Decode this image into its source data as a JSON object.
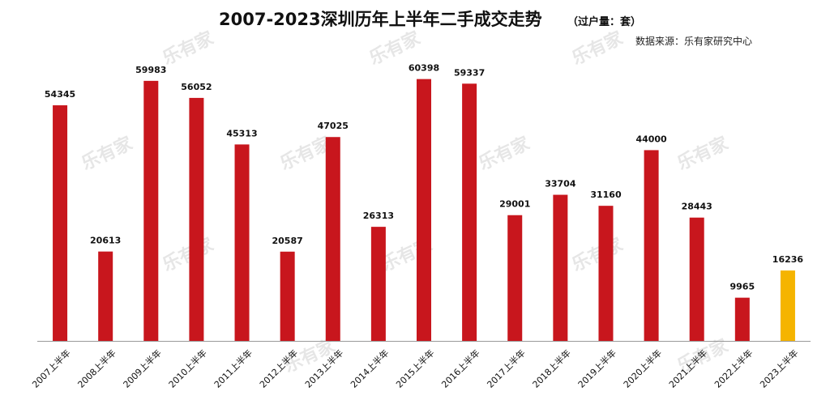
{
  "watermark": "乐有家",
  "colors": {
    "bar": "#c8161d",
    "highlight": "#f5b400",
    "axis": "#999999"
  },
  "chart_data": {
    "type": "bar",
    "title": "2007-2023深圳历年上半年二手成交走势",
    "unit": "（过户量：套）",
    "source": "数据来源：乐有家研究中心",
    "categories": [
      "2007上半年",
      "2008上半年",
      "2009上半年",
      "2010上半年",
      "2011上半年",
      "2012上半年",
      "2013上半年",
      "2014上半年",
      "2015上半年",
      "2016上半年",
      "2017上半年",
      "2018上半年",
      "2019上半年",
      "2020上半年",
      "2021上半年",
      "2022上半年",
      "2023上半年"
    ],
    "values": [
      54345,
      20613,
      59983,
      56052,
      45313,
      20587,
      47025,
      26313,
      60398,
      59337,
      29001,
      33704,
      31160,
      44000,
      28443,
      9965,
      16236
    ],
    "highlight_index": 16,
    "ylim": [
      0,
      65000
    ],
    "grid": false,
    "legend": "none"
  }
}
